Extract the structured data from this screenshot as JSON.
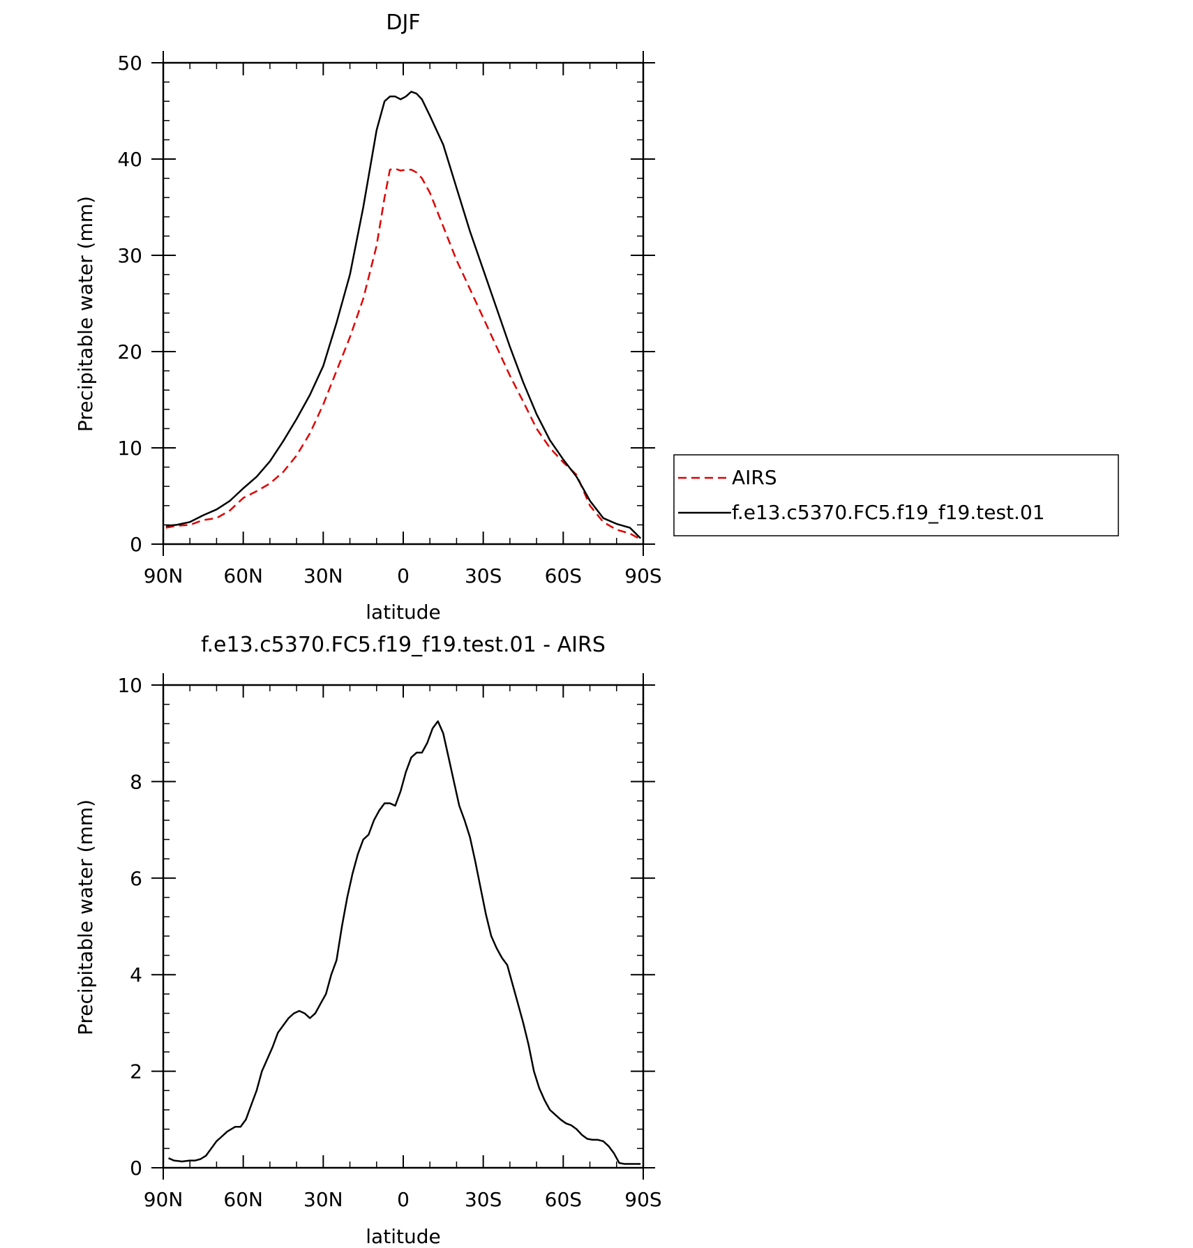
{
  "chart_data": [
    {
      "type": "line",
      "title": "DJF",
      "xlabel": "latitude",
      "ylabel": "Precipitable water (mm)",
      "xlim": [
        90,
        -90
      ],
      "ylim": [
        0,
        50
      ],
      "x_tick_values": [
        90,
        60,
        30,
        0,
        -30,
        -60,
        -90
      ],
      "x_tick_labels": [
        "90N",
        "60N",
        "30N",
        "0",
        "30S",
        "60S",
        "90S"
      ],
      "y_ticks": [
        0,
        10,
        20,
        30,
        40,
        50
      ],
      "legend": "right",
      "series": [
        {
          "name": "AIRS",
          "color": "#e00000",
          "dash": "dashed",
          "x": [
            89,
            85,
            80,
            75,
            70,
            65,
            60,
            55,
            50,
            45,
            40,
            35,
            30,
            25,
            20,
            15,
            10,
            7,
            5,
            3,
            1,
            -1,
            -3,
            -5,
            -7,
            -10,
            -15,
            -20,
            -25,
            -30,
            -35,
            -40,
            -45,
            -50,
            -55,
            -60,
            -65,
            -70,
            -75,
            -80,
            -85,
            -89
          ],
          "y": [
            1.7,
            1.9,
            2.0,
            2.5,
            2.7,
            3.5,
            4.8,
            5.5,
            6.3,
            7.5,
            9.2,
            11.5,
            14.5,
            18,
            21.5,
            25.5,
            31,
            36,
            38.9,
            39.0,
            38.8,
            38.9,
            38.9,
            38.6,
            38.0,
            36.5,
            33,
            29.5,
            26.5,
            23.5,
            20.5,
            17.5,
            14.8,
            12.0,
            10.0,
            8.5,
            7.2,
            4.0,
            2.3,
            1.5,
            1.1,
            0.5
          ]
        },
        {
          "name": "f.e13.c5370.FC5.f19_f19.test.01",
          "color": "#000000",
          "dash": "solid",
          "x": [
            89,
            85,
            80,
            75,
            70,
            65,
            60,
            55,
            50,
            45,
            40,
            35,
            30,
            25,
            20,
            15,
            10,
            7,
            5,
            3,
            1,
            -1,
            -3,
            -5,
            -7,
            -10,
            -15,
            -20,
            -25,
            -30,
            -35,
            -40,
            -45,
            -50,
            -55,
            -60,
            -65,
            -70,
            -75,
            -80,
            -85,
            -89
          ],
          "y": [
            1.9,
            2.0,
            2.3,
            3.0,
            3.6,
            4.5,
            5.8,
            7.0,
            8.6,
            10.7,
            13.0,
            15.5,
            18.5,
            23,
            28,
            35,
            43,
            46,
            46.5,
            46.5,
            46.2,
            46.5,
            47.0,
            46.8,
            46.2,
            44.5,
            41.5,
            37,
            32.5,
            28.5,
            24.5,
            20.5,
            16.8,
            13.5,
            10.8,
            8.8,
            7.0,
            4.5,
            2.7,
            2.1,
            1.7,
            0.6
          ]
        }
      ]
    },
    {
      "type": "line",
      "title": "f.e13.c5370.FC5.f19_f19.test.01 - AIRS",
      "xlabel": "latitude",
      "ylabel": "Precipitable water (mm)",
      "xlim": [
        90,
        -90
      ],
      "ylim": [
        0,
        10
      ],
      "x_tick_values": [
        90,
        60,
        30,
        0,
        -30,
        -60,
        -90
      ],
      "x_tick_labels": [
        "90N",
        "60N",
        "30N",
        "0",
        "30S",
        "60S",
        "90S"
      ],
      "y_ticks": [
        0,
        2,
        4,
        6,
        8,
        10
      ],
      "series": [
        {
          "color": "#000000",
          "dash": "solid",
          "x": [
            88,
            86,
            83,
            80,
            78,
            76,
            74,
            72,
            70,
            68,
            66,
            63,
            61,
            59,
            57,
            55,
            53,
            51,
            49,
            47,
            45,
            43,
            41,
            39,
            37,
            35,
            33,
            31,
            29,
            27,
            25,
            23,
            21,
            19,
            17,
            15,
            13,
            11,
            9,
            7,
            5,
            3,
            1,
            -1,
            -3,
            -5,
            -7,
            -9,
            -11,
            -13,
            -15,
            -17,
            -19,
            -21,
            -23,
            -25,
            -27,
            -29,
            -31,
            -33,
            -35,
            -37,
            -39,
            -41,
            -43,
            -45,
            -47,
            -49,
            -51,
            -53,
            -55,
            -57,
            -59,
            -61,
            -63,
            -65,
            -67,
            -69,
            -71,
            -73,
            -75,
            -77,
            -79,
            -81,
            -83,
            -85,
            -87,
            -89
          ],
          "y": [
            0.2,
            0.15,
            0.13,
            0.15,
            0.15,
            0.18,
            0.25,
            0.4,
            0.55,
            0.65,
            0.75,
            0.85,
            0.85,
            1.0,
            1.3,
            1.6,
            2.0,
            2.25,
            2.5,
            2.8,
            2.95,
            3.1,
            3.2,
            3.25,
            3.2,
            3.1,
            3.2,
            3.4,
            3.6,
            4.0,
            4.3,
            5.0,
            5.6,
            6.1,
            6.5,
            6.8,
            6.9,
            7.2,
            7.4,
            7.55,
            7.55,
            7.5,
            7.8,
            8.2,
            8.5,
            8.6,
            8.6,
            8.8,
            9.1,
            9.25,
            9.0,
            8.5,
            8.0,
            7.5,
            7.2,
            6.85,
            6.35,
            5.8,
            5.25,
            4.8,
            4.55,
            4.35,
            4.2,
            3.8,
            3.4,
            3.0,
            2.55,
            2.0,
            1.65,
            1.4,
            1.2,
            1.1,
            1.0,
            0.92,
            0.88,
            0.8,
            0.68,
            0.6,
            0.58,
            0.58,
            0.55,
            0.45,
            0.3,
            0.1,
            0.08,
            0.08,
            0.08,
            0.08
          ]
        }
      ]
    }
  ]
}
